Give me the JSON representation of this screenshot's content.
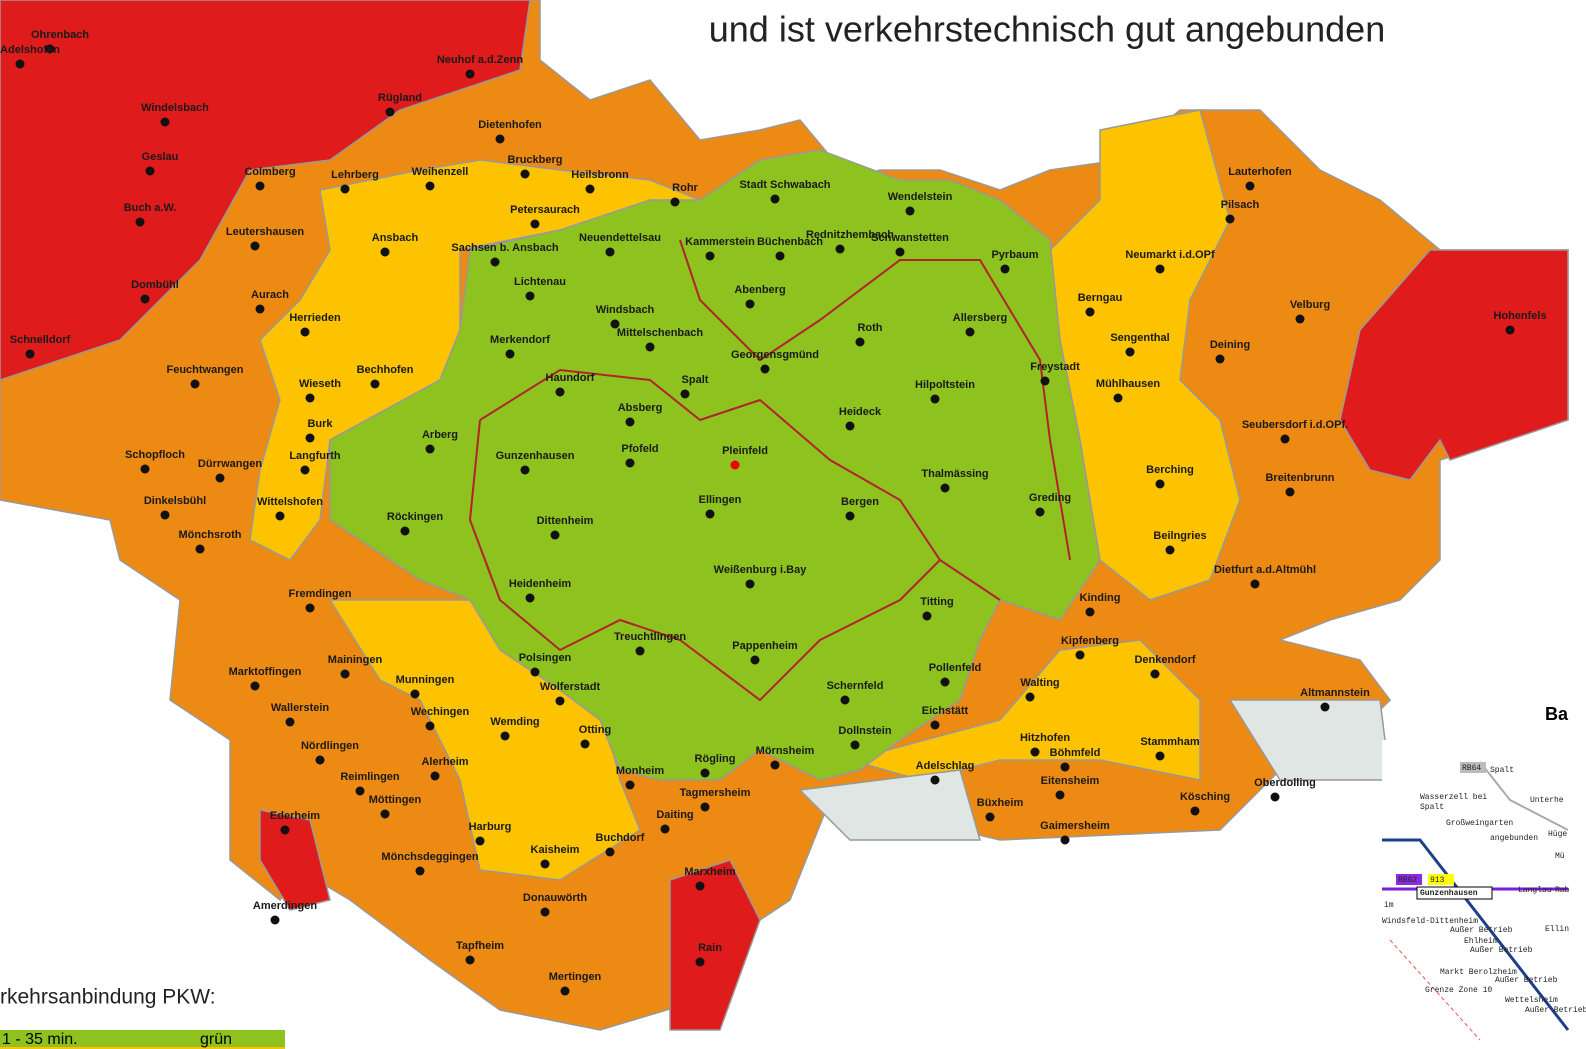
{
  "title": "und ist verkehrstechnisch gut angebunden",
  "places": [
    "Ohrenbach",
    "Adelshofen",
    "Neuhof a.d.Zenn",
    "Rügland",
    "Windelsbach",
    "Dietenhofen",
    "Geslau",
    "Colmberg",
    "Lehrberg",
    "Weihenzell",
    "Bruckberg",
    "Heilsbronn",
    "Rohr",
    "Stadt Schwabach",
    "Wendelstein",
    "Petersaurach",
    "Buch a.W.",
    "Leutershausen",
    "Ansbach",
    "Sachsen b. Ansbach",
    "Neuendettelsau",
    "Kammerstein",
    "Büchenbach",
    "Rednitzhembach",
    "Schwanstetten",
    "Pyrbaum",
    "Neumarkt i.d.OPf",
    "Pilsach",
    "Lauterhofen",
    "Dombühl",
    "Aurach",
    "Lichtenau",
    "Abenberg",
    "Herrieden",
    "Windsbach",
    "Roth",
    "Allersberg",
    "Berngau",
    "Velburg",
    "Hohenfels",
    "Schnelldorf",
    "Merkendorf",
    "Mittelschenbach",
    "Georgensgmünd",
    "Sengenthal",
    "Deining",
    "Feuchtwangen",
    "Bechhofen",
    "Freystadt",
    "Wieseth",
    "Haundorf",
    "Spalt",
    "Hilpoltstein",
    "Mühlhausen",
    "Absberg",
    "Heideck",
    "Burk",
    "Arberg",
    "Seubersdorf i.d.OPf.",
    "Schopfloch",
    "Gunzenhausen",
    "Pfofeld",
    "Pleinfeld",
    "Langfurth",
    "Dürrwangen",
    "Thalmässing",
    "Berching",
    "Breitenbrunn",
    "Dinkelsbühl",
    "Wittelshofen",
    "Ellingen",
    "Bergen",
    "Greding",
    "Röckingen",
    "Dittenheim",
    "Mönchsroth",
    "Beilngries",
    "Weißenburg i.Bay",
    "Heidenheim",
    "Titting",
    "Kinding",
    "Fremdingen",
    "Dietfurt a.d.Altmühl",
    "Treuchtlingen",
    "Pappenheim",
    "Kipfenberg",
    "Denkendorf",
    "Marktoffingen",
    "Mainingen",
    "Polsingen",
    "Munningen",
    "Pollenfeld",
    "Walting",
    "Wallerstein",
    "Wolferstadt",
    "Schernfeld",
    "Altmannstein",
    "Wechingen",
    "Wemding",
    "Eichstätt",
    "Dollnstein",
    "Nördlingen",
    "Otting",
    "Hitzhofen",
    "Stammham",
    "Mörnsheim",
    "Alerheim",
    "Rögling",
    "Adelschlag",
    "Reimlingen",
    "Monheim",
    "Oberdolling",
    "Möttingen",
    "Böhmfeld",
    "Eitensheim",
    "Kösching",
    "Büxheim",
    "Gaimersheim",
    "Tagmersheim",
    "Ederheim",
    "Harburg",
    "Daiting",
    "Buchdorf",
    "Mönchsdeggingen",
    "Kaisheim",
    "Marxheim",
    "Donauwörth",
    "Amerdingen",
    "Tapfheim",
    "Rain",
    "Mertingen"
  ],
  "legend": {
    "heading": "rkehrsanbindung PKW:",
    "rows": [
      [
        "1 - 35 min.",
        "grün"
      ]
    ]
  },
  "inset": {
    "heading": "Ba",
    "labels": [
      "RB64",
      "Spalt",
      "Wasserzell bei",
      "Spalt",
      "Unterhe",
      "Großweingarten",
      "angebunden",
      "Hüge",
      "Mü",
      "RB62",
      "913",
      "Gunzenhausen",
      "Langlau",
      "Rab",
      "im",
      "Windsfeld-Dittenheim",
      "Außer Betrieb",
      "Ehlheim",
      "Außer Betrieb",
      "Ellin",
      "Markt Berolzheim",
      "Außer Betrieb",
      "Grenze Zone 10",
      "Wettelsheim",
      "Außer Betrieb"
    ]
  }
}
